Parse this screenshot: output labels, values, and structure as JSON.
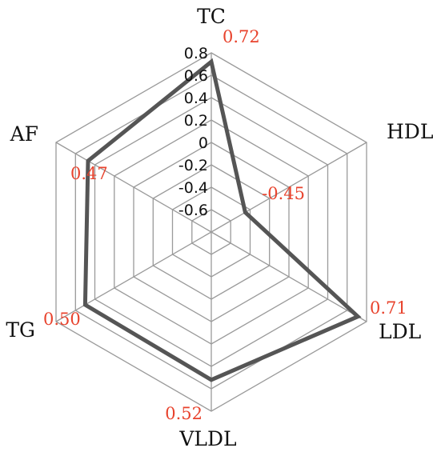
{
  "chart_data": {
    "type": "radar",
    "title": "",
    "axes": [
      "TC",
      "HDL",
      "LDL",
      "VLDL",
      "TG",
      "AF"
    ],
    "values": [
      0.72,
      -0.45,
      0.71,
      0.52,
      0.5,
      0.47
    ],
    "value_labels": [
      "0.72",
      "-0.45",
      "0.71",
      "0.52",
      "0.50",
      "0.47"
    ],
    "range": [
      -0.8,
      0.8
    ],
    "ticks": [
      -0.6,
      -0.4,
      -0.2,
      0,
      0.2,
      0.4,
      0.6,
      0.8
    ],
    "tick_labels": [
      "-0.6",
      "-0.4",
      "-0.2",
      "0",
      "0.2",
      "0.4",
      "0.6",
      "0.8"
    ],
    "grid": true,
    "colors": {
      "series": "#555555",
      "grid": "#9a9a9a",
      "value_label": "#e8432d",
      "text": "#111111"
    }
  }
}
